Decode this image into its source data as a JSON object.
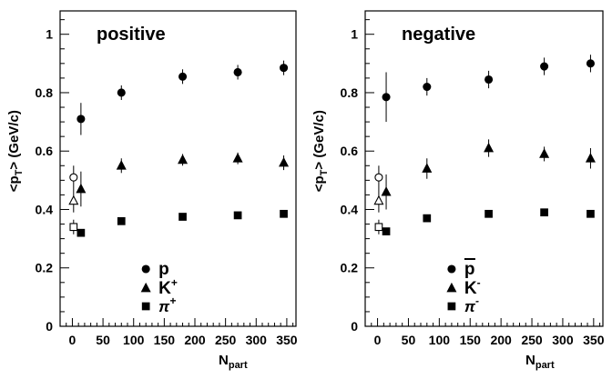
{
  "chart_data": [
    {
      "type": "scatter",
      "label": "positive",
      "xlabel_main": "N",
      "xlabel_sub": "part",
      "ylabel_main": "<p",
      "ylabel_sub": "T",
      "ylabel_rest": "> (GeV/c)",
      "xlim": [
        -20,
        365
      ],
      "ylim": [
        0,
        1.08
      ],
      "xticks": [
        "0",
        "50",
        "100",
        "150",
        "200",
        "250",
        "300",
        "350"
      ],
      "yticks": [
        "0",
        "0.2",
        "0.4",
        "0.6",
        "0.8",
        "1"
      ],
      "legend": [
        {
          "marker": "circle",
          "base": "p",
          "sup": "",
          "overline": false
        },
        {
          "marker": "triangle",
          "base": "K",
          "sup": "+",
          "overline": false
        },
        {
          "marker": "square",
          "base": "π",
          "sup": "+",
          "overline": false
        }
      ],
      "series": [
        {
          "marker": "circle",
          "points": [
            {
              "x": 14,
              "y": 0.71,
              "err": 0.055
            },
            {
              "x": 80,
              "y": 0.8,
              "err": 0.025
            },
            {
              "x": 180,
              "y": 0.855,
              "err": 0.025
            },
            {
              "x": 270,
              "y": 0.87,
              "err": 0.025
            },
            {
              "x": 345,
              "y": 0.885,
              "err": 0.025
            }
          ],
          "reference": {
            "x": 2,
            "y": 0.51,
            "err": 0.04
          }
        },
        {
          "marker": "triangle",
          "points": [
            {
              "x": 14,
              "y": 0.47,
              "err": 0.06
            },
            {
              "x": 80,
              "y": 0.55,
              "err": 0.025
            },
            {
              "x": 180,
              "y": 0.57,
              "err": 0.02
            },
            {
              "x": 270,
              "y": 0.575,
              "err": 0.02
            },
            {
              "x": 345,
              "y": 0.56,
              "err": 0.025
            }
          ],
          "reference": {
            "x": 2,
            "y": 0.43,
            "err": 0.04
          }
        },
        {
          "marker": "square",
          "points": [
            {
              "x": 14,
              "y": 0.32,
              "err": 0.01
            },
            {
              "x": 80,
              "y": 0.36,
              "err": 0.008
            },
            {
              "x": 180,
              "y": 0.375,
              "err": 0.008
            },
            {
              "x": 270,
              "y": 0.38,
              "err": 0.008
            },
            {
              "x": 345,
              "y": 0.385,
              "err": 0.008
            }
          ],
          "reference": {
            "x": 2,
            "y": 0.34,
            "err": 0.025
          }
        }
      ]
    },
    {
      "type": "scatter",
      "label": "negative",
      "xlabel_main": "N",
      "xlabel_sub": "part",
      "ylabel_main": "<p",
      "ylabel_sub": "T",
      "ylabel_rest": "> (GeV/c)",
      "xlim": [
        -20,
        365
      ],
      "ylim": [
        0,
        1.08
      ],
      "xticks": [
        "0",
        "50",
        "100",
        "150",
        "200",
        "250",
        "300",
        "350"
      ],
      "yticks": [
        "0",
        "0.2",
        "0.4",
        "0.6",
        "0.8",
        "1"
      ],
      "legend": [
        {
          "marker": "circle",
          "base": "p",
          "sup": "",
          "overline": true
        },
        {
          "marker": "triangle",
          "base": "K",
          "sup": "-",
          "overline": false
        },
        {
          "marker": "square",
          "base": "π",
          "sup": "-",
          "overline": false
        }
      ],
      "series": [
        {
          "marker": "circle",
          "points": [
            {
              "x": 14,
              "y": 0.785,
              "err": 0.085
            },
            {
              "x": 80,
              "y": 0.82,
              "err": 0.03
            },
            {
              "x": 180,
              "y": 0.845,
              "err": 0.03
            },
            {
              "x": 270,
              "y": 0.89,
              "err": 0.03
            },
            {
              "x": 345,
              "y": 0.9,
              "err": 0.03
            }
          ],
          "reference": {
            "x": 2,
            "y": 0.51,
            "err": 0.04
          }
        },
        {
          "marker": "triangle",
          "points": [
            {
              "x": 14,
              "y": 0.46,
              "err": 0.06
            },
            {
              "x": 80,
              "y": 0.54,
              "err": 0.035
            },
            {
              "x": 180,
              "y": 0.61,
              "err": 0.03
            },
            {
              "x": 270,
              "y": 0.59,
              "err": 0.025
            },
            {
              "x": 345,
              "y": 0.575,
              "err": 0.035
            }
          ],
          "reference": {
            "x": 2,
            "y": 0.43,
            "err": 0.04
          }
        },
        {
          "marker": "square",
          "points": [
            {
              "x": 14,
              "y": 0.325,
              "err": 0.01
            },
            {
              "x": 80,
              "y": 0.37,
              "err": 0.008
            },
            {
              "x": 180,
              "y": 0.385,
              "err": 0.008
            },
            {
              "x": 270,
              "y": 0.39,
              "err": 0.008
            },
            {
              "x": 345,
              "y": 0.385,
              "err": 0.008
            }
          ],
          "reference": {
            "x": 2,
            "y": 0.34,
            "err": 0.025
          }
        }
      ]
    }
  ]
}
